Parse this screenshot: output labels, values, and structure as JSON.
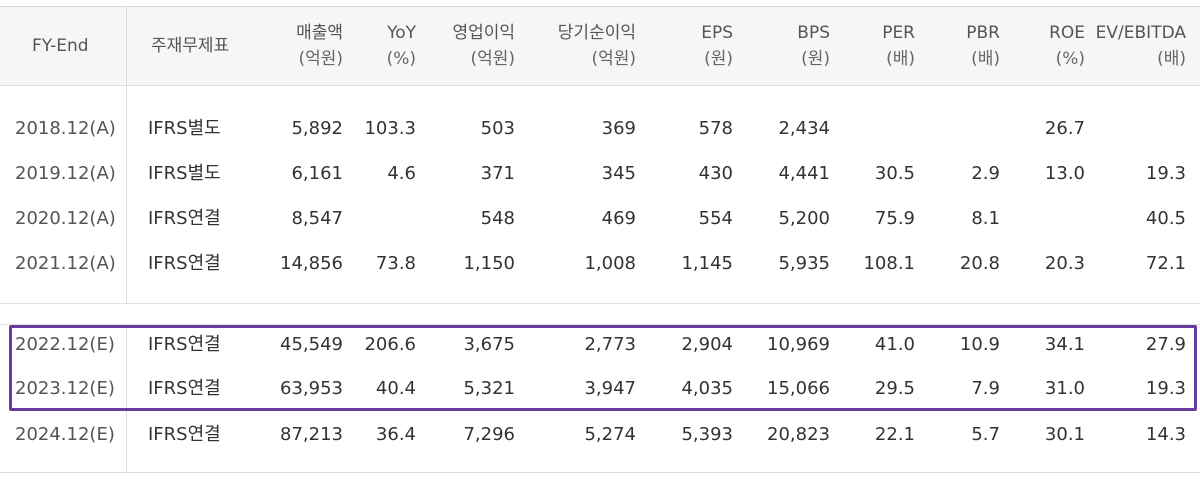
{
  "header": {
    "fy_end": "FY-End",
    "accounting": "주재무제표",
    "sales": [
      "매출액",
      "(억원)"
    ],
    "yoy": [
      "YoY",
      "(%)"
    ],
    "op_income": [
      "영업이익",
      "(억원)"
    ],
    "net_income": [
      "당기순이익",
      "(억원)"
    ],
    "eps": [
      "EPS",
      "(원)"
    ],
    "bps": [
      "BPS",
      "(원)"
    ],
    "per": [
      "PER",
      "(배)"
    ],
    "pbr": [
      "PBR",
      "(배)"
    ],
    "roe": [
      "ROE",
      "(%)"
    ],
    "ev_ebitda": [
      "EV/EBITDA",
      "(배)"
    ]
  },
  "rows": [
    {
      "fy": "2018.12(A)",
      "acc": "IFRS별도",
      "sales": "5,892",
      "yoy": "103.3",
      "op": "503",
      "net": "369",
      "eps": "578",
      "bps": "2,434",
      "per": "",
      "pbr": "",
      "roe": "26.7",
      "ev": ""
    },
    {
      "fy": "2019.12(A)",
      "acc": "IFRS별도",
      "sales": "6,161",
      "yoy": "4.6",
      "op": "371",
      "net": "345",
      "eps": "430",
      "bps": "4,441",
      "per": "30.5",
      "pbr": "2.9",
      "roe": "13.0",
      "ev": "19.3"
    },
    {
      "fy": "2020.12(A)",
      "acc": "IFRS연결",
      "sales": "8,547",
      "yoy": "",
      "op": "548",
      "net": "469",
      "eps": "554",
      "bps": "5,200",
      "per": "75.9",
      "pbr": "8.1",
      "roe": "",
      "ev": "40.5"
    },
    {
      "fy": "2021.12(A)",
      "acc": "IFRS연결",
      "sales": "14,856",
      "yoy": "73.8",
      "op": "1,150",
      "net": "1,008",
      "eps": "1,145",
      "bps": "5,935",
      "per": "108.1",
      "pbr": "20.8",
      "roe": "20.3",
      "ev": "72.1"
    },
    {
      "fy": "2022.12(E)",
      "acc": "IFRS연결",
      "sales": "45,549",
      "yoy": "206.6",
      "op": "3,675",
      "net": "2,773",
      "eps": "2,904",
      "bps": "10,969",
      "per": "41.0",
      "pbr": "10.9",
      "roe": "34.1",
      "ev": "27.9"
    },
    {
      "fy": "2023.12(E)",
      "acc": "IFRS연결",
      "sales": "63,953",
      "yoy": "40.4",
      "op": "5,321",
      "net": "3,947",
      "eps": "4,035",
      "bps": "15,066",
      "per": "29.5",
      "pbr": "7.9",
      "roe": "31.0",
      "ev": "19.3"
    },
    {
      "fy": "2024.12(E)",
      "acc": "IFRS연결",
      "sales": "87,213",
      "yoy": "36.4",
      "op": "7,296",
      "net": "5,274",
      "eps": "5,393",
      "bps": "20,823",
      "per": "22.1",
      "pbr": "5.7",
      "roe": "30.1",
      "ev": "14.3"
    }
  ],
  "colors": {
    "highlight_border": "#6a3aa3",
    "header_bg": "#f6f6f6"
  }
}
